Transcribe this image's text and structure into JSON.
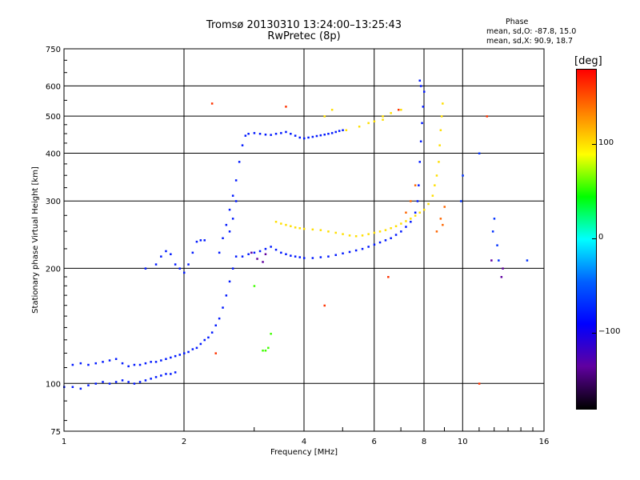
{
  "header": {
    "title_line1": "Tromsø 20130310 13:24:00–13:25:43",
    "title_line2": "RwPretec (8p)"
  },
  "phase_info": {
    "title": "Phase",
    "line_o": "mean, sd,O: -87.8, 15.0",
    "line_x": "mean, sd,X:  90.9, 18.7"
  },
  "colorbar": {
    "unit": "[deg]",
    "range": [
      -180,
      180
    ],
    "tick_labels": [
      "100",
      "0",
      "−100"
    ],
    "tick_values": [
      100,
      0,
      -100
    ],
    "colors": [
      "#ff0000",
      "#ff8000",
      "#ffff00",
      "#00ff00",
      "#00ffff",
      "#0060ff",
      "#0000ff",
      "#6000a0",
      "#000000"
    ]
  },
  "chart_data": {
    "type": "scatter",
    "title": "Tromsø 20130310 13:24:00–13:25:43",
    "subtitle": "RwPretec (8p)",
    "xlabel": "Frequency [MHz]",
    "ylabel": "Stationary phase Virtual Height [km]",
    "x_scale": "log",
    "y_scale": "log",
    "xlim": [
      1,
      16
    ],
    "ylim": [
      75,
      750
    ],
    "x_ticks": [
      1,
      2,
      4,
      6,
      8,
      10,
      16
    ],
    "x_tick_labels": [
      "1",
      "2",
      "4",
      "6",
      "8",
      "10",
      "16"
    ],
    "y_ticks": [
      75,
      100,
      200,
      300,
      400,
      500,
      600,
      750
    ],
    "y_tick_labels": [
      "75",
      "100",
      "200",
      "300",
      "400",
      "500",
      "600",
      "750"
    ],
    "grid": true,
    "series": [
      {
        "phase": -100,
        "points": [
          [
            1.0,
            98
          ],
          [
            1.05,
            98
          ],
          [
            1.1,
            97
          ],
          [
            1.15,
            99
          ],
          [
            1.2,
            100
          ],
          [
            1.25,
            101
          ],
          [
            1.3,
            100
          ],
          [
            1.35,
            101
          ],
          [
            1.4,
            102
          ],
          [
            1.45,
            101
          ],
          [
            1.5,
            100
          ],
          [
            1.55,
            101
          ],
          [
            1.6,
            102
          ],
          [
            1.65,
            103
          ],
          [
            1.7,
            104
          ],
          [
            1.75,
            105
          ],
          [
            1.8,
            106
          ],
          [
            1.85,
            106
          ],
          [
            1.9,
            107
          ],
          [
            1.05,
            112
          ],
          [
            1.1,
            113
          ],
          [
            1.15,
            112
          ],
          [
            1.2,
            113
          ],
          [
            1.25,
            114
          ],
          [
            1.3,
            115
          ],
          [
            1.35,
            116
          ],
          [
            1.4,
            113
          ],
          [
            1.45,
            111
          ],
          [
            1.5,
            112
          ],
          [
            1.55,
            112
          ],
          [
            1.6,
            113
          ],
          [
            1.65,
            114
          ],
          [
            1.7,
            114
          ],
          [
            1.75,
            115
          ],
          [
            1.8,
            116
          ],
          [
            1.85,
            117
          ],
          [
            1.9,
            118
          ],
          [
            1.95,
            119
          ],
          [
            2.0,
            120
          ],
          [
            2.05,
            121
          ],
          [
            2.1,
            123
          ],
          [
            2.15,
            124
          ],
          [
            2.2,
            127
          ],
          [
            2.25,
            130
          ],
          [
            2.3,
            132
          ],
          [
            2.35,
            136
          ],
          [
            2.4,
            142
          ],
          [
            2.45,
            148
          ],
          [
            2.5,
            158
          ],
          [
            2.55,
            170
          ],
          [
            2.6,
            185
          ],
          [
            2.65,
            200
          ],
          [
            2.7,
            215
          ],
          [
            1.6,
            200
          ],
          [
            1.7,
            205
          ],
          [
            1.75,
            215
          ],
          [
            1.8,
            222
          ],
          [
            1.85,
            218
          ],
          [
            1.9,
            205
          ],
          [
            1.95,
            200
          ],
          [
            2.0,
            195
          ],
          [
            2.05,
            205
          ],
          [
            2.1,
            220
          ],
          [
            2.15,
            235
          ],
          [
            2.2,
            237
          ],
          [
            2.25,
            237
          ],
          [
            2.45,
            220
          ],
          [
            2.5,
            240
          ],
          [
            2.55,
            260
          ],
          [
            2.6,
            285
          ],
          [
            2.65,
            310
          ],
          [
            2.7,
            340
          ],
          [
            2.6,
            250
          ],
          [
            2.65,
            270
          ],
          [
            2.7,
            300
          ],
          [
            2.75,
            380
          ],
          [
            2.8,
            420
          ],
          [
            2.85,
            445
          ],
          [
            2.9,
            450
          ],
          [
            3.0,
            452
          ],
          [
            3.1,
            450
          ],
          [
            3.2,
            448
          ],
          [
            3.3,
            447
          ],
          [
            3.4,
            450
          ],
          [
            3.5,
            452
          ],
          [
            3.6,
            455
          ],
          [
            3.7,
            450
          ],
          [
            3.8,
            445
          ],
          [
            3.9,
            440
          ],
          [
            4.0,
            438
          ],
          [
            4.1,
            440
          ],
          [
            4.2,
            442
          ],
          [
            4.3,
            444
          ],
          [
            4.4,
            446
          ],
          [
            4.5,
            448
          ],
          [
            4.6,
            450
          ],
          [
            4.7,
            452
          ],
          [
            4.8,
            455
          ],
          [
            4.9,
            458
          ],
          [
            5.0,
            460
          ],
          [
            2.8,
            215
          ],
          [
            2.9,
            218
          ],
          [
            3.0,
            220
          ],
          [
            3.1,
            222
          ],
          [
            3.2,
            225
          ],
          [
            3.3,
            228
          ],
          [
            3.4,
            224
          ],
          [
            3.5,
            220
          ],
          [
            3.6,
            218
          ],
          [
            3.7,
            216
          ],
          [
            3.8,
            215
          ],
          [
            3.9,
            214
          ],
          [
            4.0,
            213
          ],
          [
            4.2,
            213
          ],
          [
            4.4,
            214
          ],
          [
            4.6,
            215
          ],
          [
            4.8,
            217
          ],
          [
            5.0,
            219
          ],
          [
            5.2,
            221
          ],
          [
            5.4,
            223
          ],
          [
            5.6,
            225
          ],
          [
            5.8,
            228
          ],
          [
            6.0,
            231
          ],
          [
            6.2,
            234
          ],
          [
            6.4,
            237
          ],
          [
            6.6,
            240
          ],
          [
            6.8,
            245
          ],
          [
            7.0,
            250
          ],
          [
            7.2,
            257
          ],
          [
            7.4,
            265
          ],
          [
            7.6,
            280
          ],
          [
            7.7,
            300
          ],
          [
            7.75,
            330
          ],
          [
            7.8,
            380
          ],
          [
            7.85,
            430
          ],
          [
            7.9,
            480
          ],
          [
            7.95,
            530
          ],
          [
            8.0,
            580
          ],
          [
            7.8,
            620
          ],
          [
            7.85,
            600
          ]
        ]
      },
      {
        "phase": 100,
        "points": [
          [
            3.4,
            265
          ],
          [
            3.5,
            262
          ],
          [
            3.6,
            260
          ],
          [
            3.7,
            258
          ],
          [
            3.8,
            256
          ],
          [
            3.9,
            255
          ],
          [
            4.0,
            254
          ],
          [
            4.2,
            253
          ],
          [
            4.4,
            252
          ],
          [
            4.6,
            250
          ],
          [
            4.8,
            248
          ],
          [
            5.0,
            246
          ],
          [
            5.2,
            244
          ],
          [
            5.4,
            243
          ],
          [
            5.6,
            244
          ],
          [
            5.8,
            246
          ],
          [
            6.0,
            248
          ],
          [
            6.2,
            250
          ],
          [
            6.4,
            252
          ],
          [
            6.6,
            255
          ],
          [
            6.8,
            258
          ],
          [
            7.0,
            262
          ],
          [
            7.2,
            266
          ],
          [
            7.4,
            270
          ],
          [
            7.6,
            275
          ],
          [
            7.8,
            280
          ],
          [
            8.0,
            285
          ],
          [
            8.2,
            295
          ],
          [
            8.4,
            310
          ],
          [
            8.5,
            330
          ],
          [
            8.6,
            350
          ],
          [
            8.7,
            380
          ],
          [
            8.75,
            420
          ],
          [
            8.8,
            460
          ],
          [
            8.85,
            500
          ],
          [
            8.9,
            540
          ],
          [
            5.5,
            470
          ],
          [
            5.8,
            480
          ],
          [
            6.0,
            485
          ],
          [
            6.3,
            500
          ],
          [
            6.6,
            510
          ],
          [
            7.0,
            520
          ],
          [
            5.1,
            460
          ],
          [
            4.5,
            500
          ],
          [
            4.7,
            520
          ],
          [
            6.3,
            490
          ]
        ]
      },
      {
        "phase": 160,
        "points": [
          [
            2.35,
            540
          ],
          [
            3.6,
            530
          ],
          [
            4.5,
            160
          ],
          [
            6.5,
            190
          ],
          [
            6.9,
            520
          ],
          [
            11.5,
            500
          ],
          [
            11.0,
            100
          ],
          [
            2.4,
            120
          ]
        ]
      },
      {
        "phase": 30,
        "points": [
          [
            3.0,
            180
          ],
          [
            3.3,
            135
          ],
          [
            3.2,
            122
          ],
          [
            3.15,
            122
          ],
          [
            3.25,
            124
          ]
        ]
      },
      {
        "phase": -150,
        "points": [
          [
            2.95,
            220
          ],
          [
            3.05,
            212
          ],
          [
            3.15,
            208
          ],
          [
            3.2,
            218
          ],
          [
            12.5,
            190
          ],
          [
            12.6,
            200
          ],
          [
            11.8,
            210
          ]
        ]
      },
      {
        "phase": -90,
        "points": [
          [
            11.0,
            400
          ],
          [
            10.0,
            350
          ],
          [
            12.0,
            270
          ],
          [
            12.3,
            210
          ],
          [
            14.5,
            210
          ],
          [
            11.9,
            250
          ],
          [
            9.9,
            300
          ],
          [
            12.2,
            230
          ]
        ]
      },
      {
        "phase": 140,
        "points": [
          [
            8.6,
            250
          ],
          [
            8.8,
            270
          ],
          [
            9.0,
            290
          ],
          [
            7.2,
            280
          ],
          [
            7.4,
            300
          ],
          [
            7.6,
            330
          ],
          [
            8.9,
            260
          ]
        ]
      }
    ]
  }
}
